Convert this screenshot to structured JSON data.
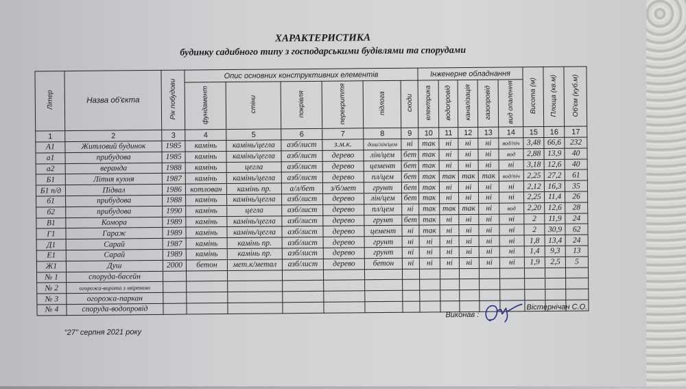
{
  "document": {
    "title": "ХАРАКТЕРИСТИКА",
    "subtitle": "будинку садибного типу з господарськими будівлями та спорудами",
    "headers": {
      "liter": "Літер",
      "name": "Назва об'єкта",
      "year": "Рік побудови",
      "structural_group": "Опис основних конструктивних елементів",
      "engineering_group": "Інженерне обладнання",
      "foundation": "фундамент",
      "walls": "стіни",
      "roof": "покрівля",
      "ceiling": "перекриття",
      "floor": "підлога",
      "stairs": "сходи",
      "electricity": "електрика",
      "water": "водопровід",
      "sewage": "каналізація",
      "gas": "газопровід",
      "heating": "вид опалення",
      "height": "Висота (м)",
      "area": "Площа (кв.м)",
      "volume": "Об'єм (куб.м)"
    },
    "column_numbers": [
      "1",
      "2",
      "3",
      "4",
      "5",
      "6",
      "7",
      "8",
      "9",
      "10",
      "11",
      "12",
      "13",
      "14",
      "15",
      "16",
      "17"
    ],
    "rows": [
      [
        "А1",
        "Житловий будинок",
        "1985",
        "камінь",
        "камінь/цегла",
        "азб/лист",
        "з.м.к.",
        "дош/лін/цем",
        "ні",
        "так",
        "ні",
        "ні",
        "ні",
        "вод/піч",
        "3,48",
        "66,6",
        "232"
      ],
      [
        "а1",
        "прибудова",
        "1985",
        "камінь",
        "камінь/цегла",
        "азб/лист",
        "дерево",
        "лін/цем",
        "бет",
        "так",
        "ні",
        "ні",
        "ні",
        "вод",
        "2,88",
        "13,9",
        "40"
      ],
      [
        "а2",
        "веранда",
        "1988",
        "камінь",
        "цегла",
        "азб/лист",
        "дерево",
        "цемент",
        "бет",
        "так",
        "ні",
        "ні",
        "ні",
        "ні",
        "3,18",
        "12,6",
        "40"
      ],
      [
        "Б1",
        "Літня кухня",
        "1987",
        "камінь",
        "камінь/цегла",
        "азб/лист",
        "дерево",
        "пл/цем",
        "бет",
        "так",
        "так",
        "так",
        "так",
        "вод/піч",
        "2,25",
        "27,2",
        "61"
      ],
      [
        "Б1 п/д",
        "Підвал",
        "1986",
        "котлован",
        "камінь пр.",
        "а/л/бет",
        "з/б/мет",
        "грунт",
        "бет",
        "так",
        "ні",
        "ні",
        "ні",
        "ні",
        "2,12",
        "16,3",
        "35"
      ],
      [
        "б1",
        "прибудова",
        "1988",
        "камінь",
        "камінь/цегла",
        "азб/лист",
        "дерево",
        "лін/цем",
        "бет",
        "так",
        "ні",
        "ні",
        "ні",
        "ні",
        "2,25",
        "11,4",
        "26"
      ],
      [
        "б2",
        "прибудова",
        "1990",
        "камінь",
        "цегла",
        "азб/лист",
        "дерево",
        "пл/цем",
        "ні",
        "так",
        "так",
        "так",
        "ні",
        "вод",
        "2,20",
        "12,6",
        "28"
      ],
      [
        "В1",
        "Комора",
        "1989",
        "камінь",
        "камінь/цегла",
        "азб/лист",
        "дерево",
        "грунт",
        "бет",
        "так",
        "ні",
        "ні",
        "ні",
        "ні",
        "2",
        "11,9",
        "24"
      ],
      [
        "Г1",
        "Гараж",
        "1989",
        "камінь",
        "камінь/цегла",
        "азб/лист",
        "дерево",
        "цемент",
        "ні",
        "так",
        "ні",
        "ні",
        "ні",
        "ні",
        "2",
        "30,9",
        "62"
      ],
      [
        "Д1",
        "Сарай",
        "1987",
        "камінь",
        "камінь пр.",
        "азб/лист",
        "дерево",
        "грунт",
        "ні",
        "ні",
        "ні",
        "ні",
        "ні",
        "ні",
        "1,8",
        "13,4",
        "24"
      ],
      [
        "Е1",
        "Сарай",
        "1989",
        "камінь",
        "камінь пр.",
        "азб/лист",
        "дерево",
        "грунт",
        "ні",
        "ні",
        "ні",
        "ні",
        "ні",
        "ні",
        "1,4",
        "9,3",
        "13"
      ],
      [
        "Ж1",
        "Душ",
        "2000",
        "бетон",
        "мет.к/метал",
        "азб/лист",
        "дерево",
        "бетон",
        "ні",
        "ні",
        "ні",
        "ні",
        "ні",
        "ні",
        "1,9",
        "2,5",
        "5"
      ],
      [
        "№ 1",
        "споруда-басейн",
        "",
        "",
        "",
        "",
        "",
        "",
        "",
        "",
        "",
        "",
        "",
        "",
        "",
        "",
        ""
      ],
      [
        "№ 2",
        "огорожа-ворота з хвірткою",
        "",
        "",
        "",
        "",
        "",
        "",
        "",
        "",
        "",
        "",
        "",
        "",
        "",
        "",
        ""
      ],
      [
        "№ 3",
        "огорожа-паркан",
        "",
        "",
        "",
        "",
        "",
        "",
        "",
        "",
        "",
        "",
        "",
        "",
        "",
        "",
        ""
      ],
      [
        "№ 4",
        "споруда-водопровід",
        "",
        "",
        "",
        "",
        "",
        "",
        "",
        "",
        "",
        "",
        "",
        "",
        "",
        "",
        ""
      ]
    ],
    "date": "\"27\" серпня 2021 року",
    "executed_label": "Виконав :",
    "executor_name": "Вістернічан С.О."
  }
}
